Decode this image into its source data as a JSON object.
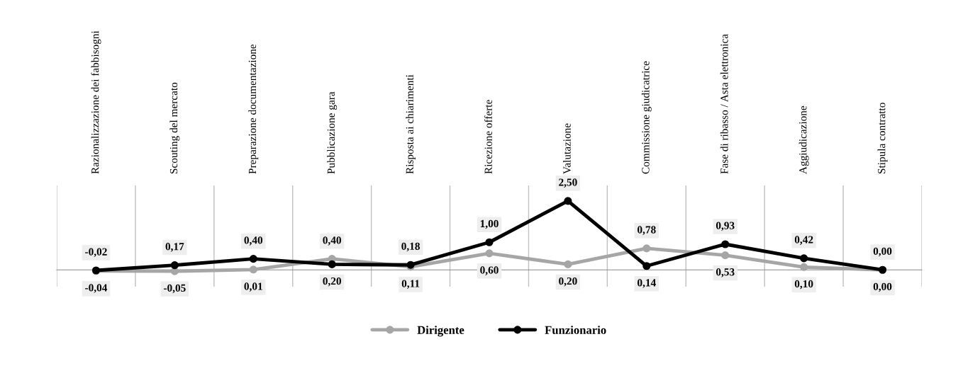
{
  "chart_data": {
    "type": "line",
    "categories": [
      "Razionalizzazione dei fabbisogni",
      "Scouting del mercato",
      "Preparazione documentazione",
      "Pubblicazione gara",
      "Risposta ai chiarimenti",
      "Ricezione offerte",
      "Valutazione",
      "Commissione giudicatrice",
      "Fase di ribasso / Asta elettronica",
      "Aggiudicazione",
      "Stipula contratto"
    ],
    "series": [
      {
        "name": "Dirigente",
        "color": "#a6a6a6",
        "values": [
          -0.04,
          -0.05,
          0.01,
          0.4,
          0.11,
          0.6,
          0.2,
          0.78,
          0.53,
          0.1,
          0.0
        ],
        "value_labels": [
          "-0,04",
          "-0,05",
          "0,01",
          "0,40",
          "0,11",
          "0,60",
          "0,20",
          "0,78",
          "0,53",
          "0,10",
          "0,00"
        ]
      },
      {
        "name": "Funzionario",
        "color": "#000000",
        "values": [
          -0.02,
          0.17,
          0.4,
          0.2,
          0.18,
          1.0,
          2.5,
          0.14,
          0.93,
          0.42,
          0.0
        ],
        "value_labels": [
          "-0,02",
          "0,17",
          "0,40",
          "0,20",
          "0,18",
          "1,00",
          "2,50",
          "0,14",
          "0,93",
          "0,42",
          "0,00"
        ]
      }
    ],
    "tick_labels": "x",
    "grid": "x",
    "legend": "bottom",
    "marker": "circle",
    "line_style": "solid"
  }
}
